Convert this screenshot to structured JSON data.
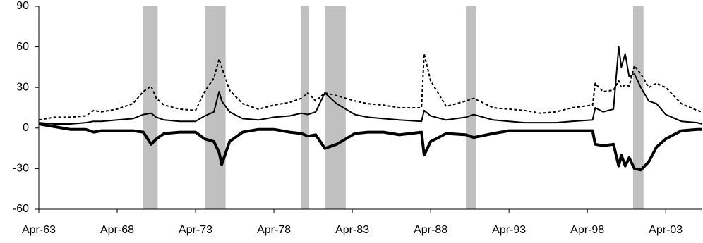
{
  "chart_data": {
    "type": "line",
    "x": [
      "Apr-63",
      "Apr-64",
      "Apr-65",
      "Apr-66",
      "Oct-66",
      "Apr-67",
      "Apr-68",
      "Apr-69",
      "Dec-69",
      "Jun-70",
      "Oct-70",
      "Apr-71",
      "Apr-72",
      "Apr-73",
      "Nov-73",
      "Jun-74",
      "Oct-74",
      "Dec-74",
      "Jun-75",
      "Apr-76",
      "Apr-77",
      "Apr-78",
      "Apr-79",
      "Jan-80",
      "Jun-80",
      "Dec-80",
      "Jul-81",
      "Apr-82",
      "Nov-82",
      "Jun-83",
      "Apr-84",
      "Apr-85",
      "Apr-86",
      "Sep-87",
      "Nov-87",
      "Apr-88",
      "Apr-89",
      "Jul-90",
      "Jan-91",
      "Apr-92",
      "Apr-93",
      "Apr-94",
      "Apr-95",
      "Apr-96",
      "Apr-97",
      "Aug-98",
      "Oct-98",
      "Apr-99",
      "Dec-99",
      "Apr-00",
      "Jun-00",
      "Sep-00",
      "Dec-00",
      "Apr-01",
      "Sep-01",
      "Mar-02",
      "Sep-02",
      "Apr-03",
      "Apr-04",
      "Apr-05",
      "Aug-05"
    ],
    "series": [
      {
        "color": "#000000",
        "dash": true,
        "width": 2,
        "values": [
          6,
          8,
          8,
          9,
          13,
          12,
          14,
          18,
          27,
          31,
          22,
          17,
          14,
          13,
          27,
          37,
          51,
          45,
          28,
          18,
          14,
          17,
          19,
          22,
          26,
          20,
          26,
          24,
          22,
          20,
          18,
          17,
          15,
          15,
          55,
          35,
          16,
          20,
          22,
          15,
          14,
          13,
          11,
          12,
          15,
          17,
          33,
          27,
          28,
          35,
          30,
          32,
          31,
          46,
          40,
          30,
          33,
          30,
          18,
          13,
          12
        ]
      },
      {
        "color": "#000000",
        "dash": false,
        "width": 2,
        "values": [
          4,
          3,
          3,
          4,
          5,
          5,
          6,
          7,
          10,
          11,
          8,
          6,
          5,
          5,
          9,
          12,
          27,
          20,
          12,
          7,
          6,
          8,
          9,
          11,
          10,
          12,
          26,
          18,
          14,
          10,
          8,
          7,
          6,
          5,
          13,
          9,
          6,
          8,
          10,
          6,
          5,
          4,
          4,
          4,
          5,
          6,
          15,
          12,
          14,
          60,
          45,
          55,
          38,
          40,
          30,
          20,
          18,
          10,
          5,
          4,
          3
        ]
      },
      {
        "color": "#000000",
        "dash": false,
        "width": 4,
        "values": [
          3,
          1,
          -1,
          -1,
          -3,
          -2,
          -2,
          -2,
          -3,
          -12,
          -8,
          -4,
          -3,
          -3,
          -8,
          -10,
          -18,
          -27,
          -10,
          -3,
          -1,
          -1,
          -3,
          -4,
          -6,
          -5,
          -15,
          -12,
          -8,
          -4,
          -3,
          -3,
          -5,
          -3,
          -20,
          -10,
          -4,
          -5,
          -7,
          -4,
          -2,
          -2,
          -2,
          -2,
          -2,
          -2,
          -12,
          -13,
          -12,
          -28,
          -20,
          -28,
          -22,
          -30,
          -31,
          -25,
          -14,
          -8,
          -2,
          -1,
          -1
        ]
      }
    ],
    "shaded_periods": [
      {
        "start": "Dec-69",
        "end": "Nov-70"
      },
      {
        "start": "Nov-73",
        "end": "Mar-75"
      },
      {
        "start": "Jan-80",
        "end": "Jul-80"
      },
      {
        "start": "Jul-81",
        "end": "Nov-82"
      },
      {
        "start": "Jul-90",
        "end": "Mar-91"
      },
      {
        "start": "Mar-01",
        "end": "Nov-01"
      }
    ],
    "shade_color": "#c0c0c0",
    "xlim": [
      "Apr-63",
      "Aug-05"
    ],
    "xticks": [
      "Apr-63",
      "Apr-68",
      "Apr-73",
      "Apr-78",
      "Apr-83",
      "Apr-88",
      "Apr-93",
      "Apr-98",
      "Apr-03"
    ],
    "ylim": [
      -60,
      90
    ],
    "yticks": [
      -60,
      -30,
      0,
      30,
      60,
      90
    ],
    "grid": false
  }
}
